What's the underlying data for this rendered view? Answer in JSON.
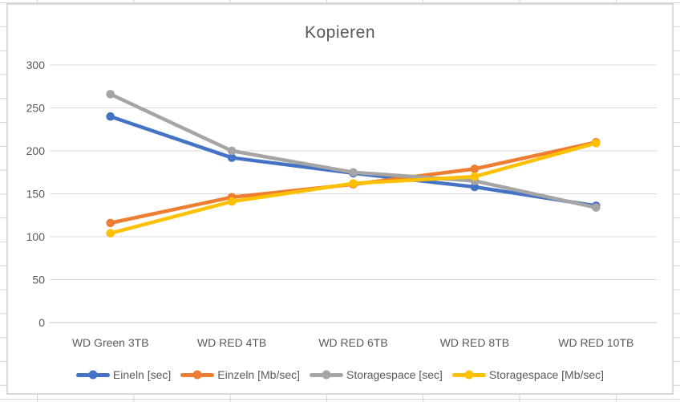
{
  "sheet": {
    "gridline_color": "#d4d4d4",
    "background_color": "#ffffff"
  },
  "chart": {
    "border_color": "#d9d9d9",
    "background_color": "#ffffff",
    "text_color": "#595959"
  },
  "chart_data": {
    "type": "line",
    "title": "Kopieren",
    "categories": [
      "WD Green 3TB",
      "WD RED 4TB",
      "WD RED 6TB",
      "WD RED 8TB",
      "WD RED 10TB"
    ],
    "series": [
      {
        "name": "Eineln [sec]",
        "color": "#4472C4",
        "values": [
          240,
          192,
          174,
          158,
          136
        ]
      },
      {
        "name": "Einzeln [Mb/sec]",
        "color": "#ED7D31",
        "values": [
          116,
          146,
          161,
          179,
          210
        ]
      },
      {
        "name": "Storagespace [sec]",
        "color": "#A5A5A5",
        "values": [
          266,
          200,
          175,
          165,
          134
        ]
      },
      {
        "name": "Storagespace [Mb/sec]",
        "color": "#FFC000",
        "values": [
          104,
          141,
          162,
          170,
          209
        ]
      }
    ],
    "ylim": [
      0,
      300
    ],
    "yticks": [
      0,
      50,
      100,
      150,
      200,
      250,
      300
    ],
    "xlabel": "",
    "ylabel": "",
    "grid": true,
    "gridline_color": "#d9d9d9",
    "legend_position": "bottom",
    "marker": "circle"
  }
}
